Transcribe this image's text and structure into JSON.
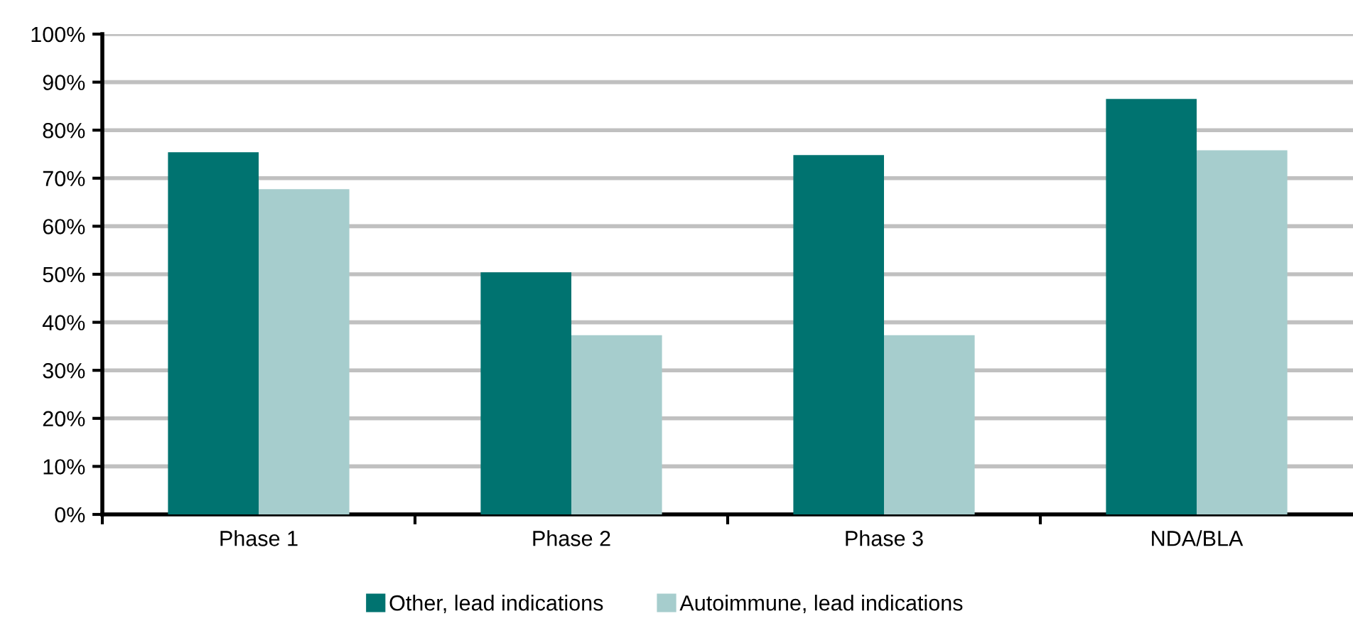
{
  "chart_data": {
    "type": "bar",
    "categories": [
      "Phase 1",
      "Phase 2",
      "Phase 3",
      "NDA/BLA"
    ],
    "series": [
      {
        "name": "Other, lead indications",
        "color": "#007370",
        "values": [
          75.4,
          50.4,
          74.8,
          86.5
        ]
      },
      {
        "name": "Autoimmune, lead indications",
        "color": "#a6cdcd",
        "values": [
          67.7,
          37.3,
          37.3,
          75.8
        ]
      }
    ],
    "ylim": [
      0,
      100
    ],
    "yticks": [
      {
        "value": 0,
        "label": "0%"
      },
      {
        "value": 10,
        "label": "10%"
      },
      {
        "value": 20,
        "label": "20%"
      },
      {
        "value": 30,
        "label": "30%"
      },
      {
        "value": 40,
        "label": "40%"
      },
      {
        "value": 50,
        "label": "50%"
      },
      {
        "value": 60,
        "label": "60%"
      },
      {
        "value": 70,
        "label": "70%"
      },
      {
        "value": 80,
        "label": "80%"
      },
      {
        "value": 90,
        "label": "90%"
      },
      {
        "value": 100,
        "label": "100%"
      }
    ],
    "grid": "y",
    "legend": "bottom"
  }
}
